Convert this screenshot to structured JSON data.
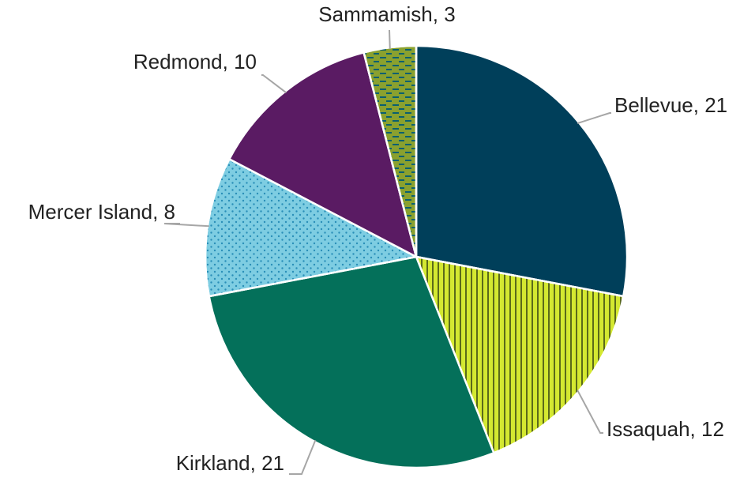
{
  "chart_data": {
    "type": "pie",
    "categories": [
      "Bellevue",
      "Issaquah",
      "Kirkland",
      "Mercer Island",
      "Redmond",
      "Sammamish"
    ],
    "values": [
      21,
      12,
      21,
      8,
      10,
      3
    ],
    "colors": [
      "#003f5a",
      "#d4e831",
      "#04705a",
      "#7ecde2",
      "#5a1b63",
      "#8aa12f"
    ],
    "patterns": [
      "none",
      "vertical-stripes",
      "none",
      "dots",
      "none",
      "dashes"
    ]
  }
}
